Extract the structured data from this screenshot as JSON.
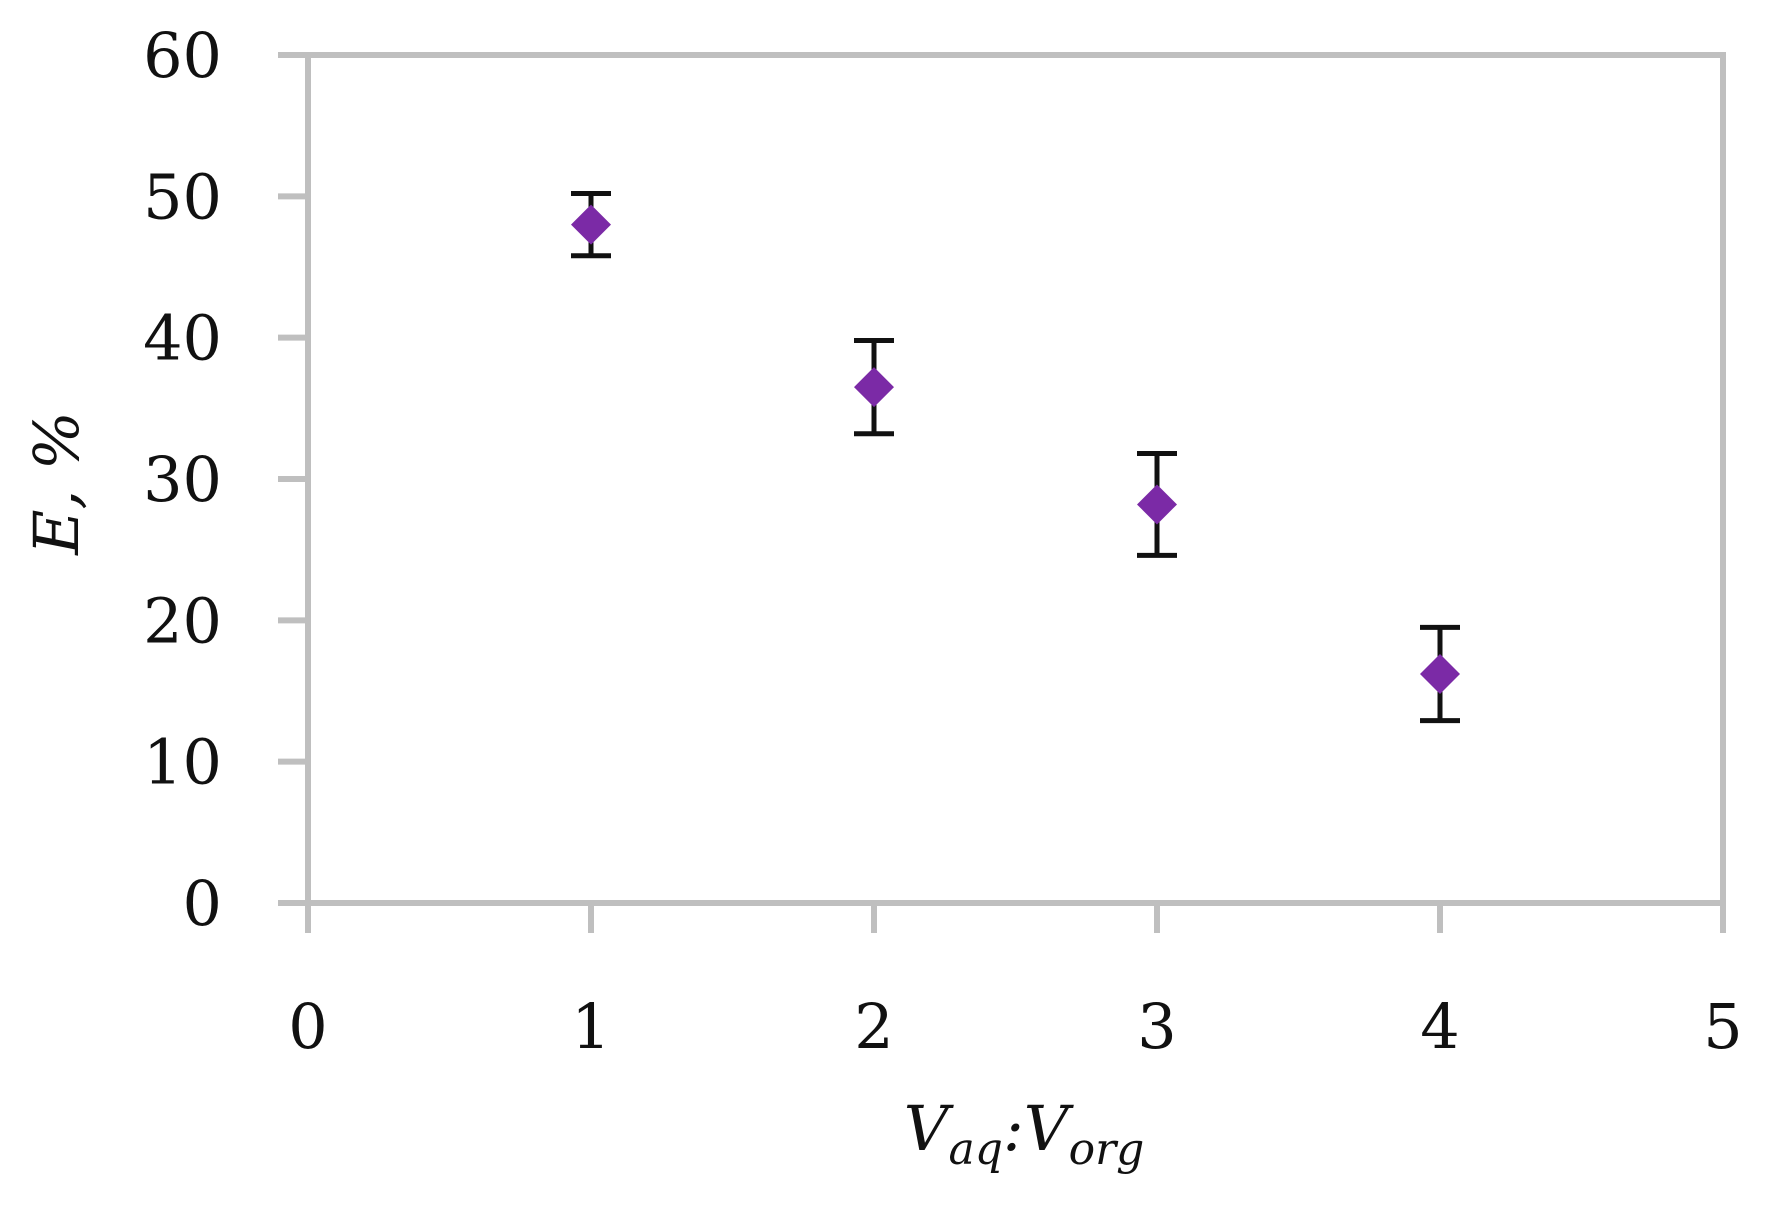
{
  "chart_data": {
    "type": "scatter",
    "title": "",
    "xlabel": {
      "main": "V",
      "sub_left": "aq",
      "separator": ":",
      "main2": "V",
      "sub_right": "org"
    },
    "ylabel": "E, %",
    "xlim": [
      0,
      5
    ],
    "ylim": [
      0,
      60
    ],
    "xticks": [
      0,
      1,
      2,
      3,
      4,
      5
    ],
    "yticks": [
      0,
      10,
      20,
      30,
      40,
      50,
      60
    ],
    "grid": false,
    "legend": "none",
    "marker": "diamond",
    "marker_color": "#7B2AA6",
    "errorbar_color": "#111111",
    "axis_color": "#BFBFBF",
    "series": [
      {
        "x": [
          1,
          2,
          3,
          4
        ],
        "y": [
          48.0,
          36.5,
          28.2,
          16.2
        ],
        "err": [
          2.2,
          3.3,
          3.6,
          3.3
        ]
      }
    ]
  }
}
